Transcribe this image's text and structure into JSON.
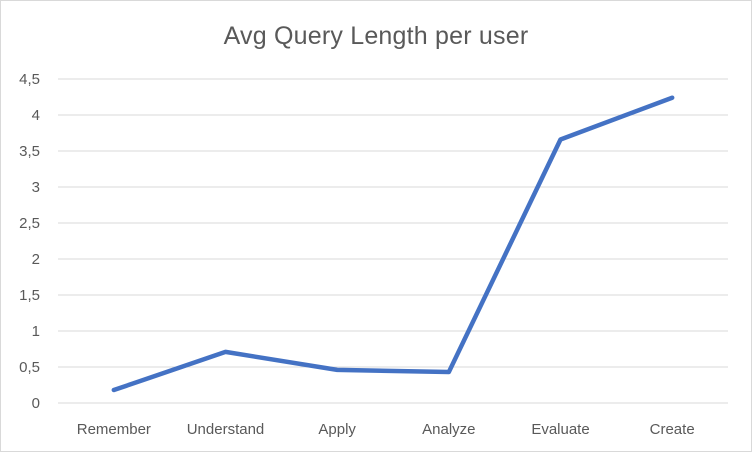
{
  "chart_data": {
    "type": "line",
    "title": "Avg Query Length per user",
    "xlabel": "",
    "ylabel": "",
    "categories": [
      "Remember",
      "Understand",
      "Apply",
      "Analyze",
      "Evaluate",
      "Create"
    ],
    "series": [
      {
        "values": [
          0.18,
          0.71,
          0.46,
          0.43,
          3.66,
          4.24
        ],
        "color": "#4472c4"
      }
    ],
    "ylim": [
      0,
      4.5
    ],
    "yticks": [
      "0",
      "0,5",
      "1",
      "1,5",
      "2",
      "2,5",
      "3",
      "3,5",
      "4",
      "4,5"
    ],
    "grid": true,
    "legend": "none"
  }
}
